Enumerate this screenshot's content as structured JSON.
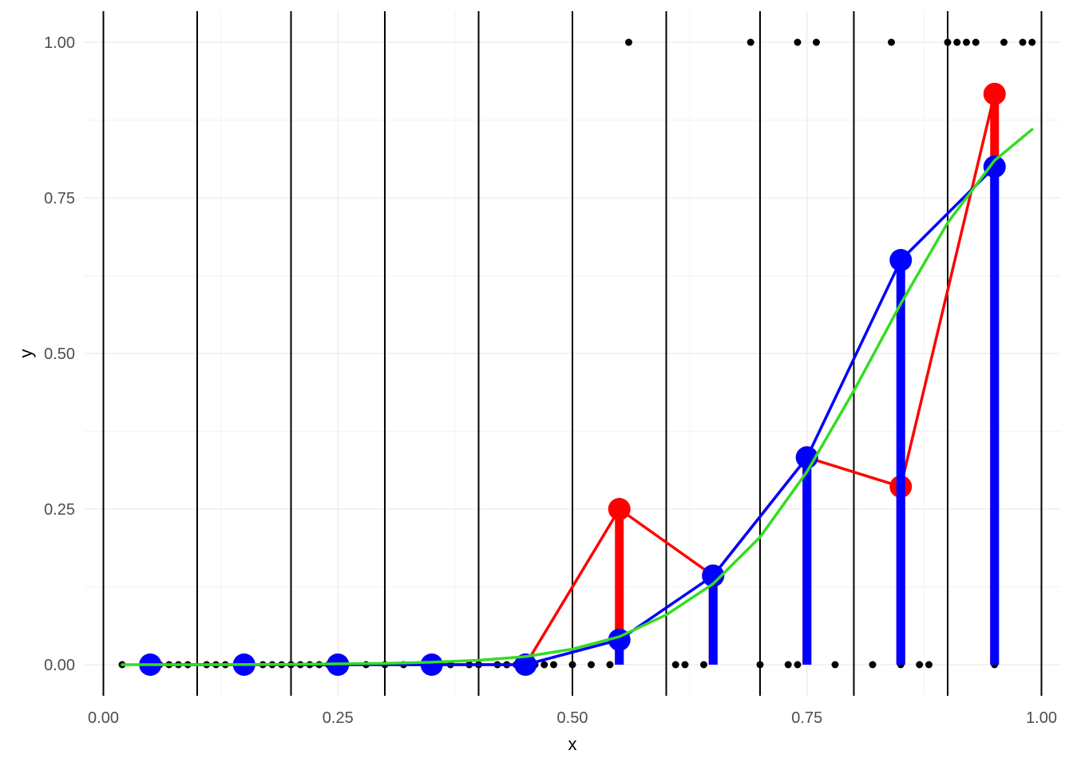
{
  "chart_data": {
    "type": "scatter",
    "title": "",
    "xlabel": "x",
    "ylabel": "y",
    "xlim": [
      -0.02,
      1.02
    ],
    "ylim": [
      -0.05,
      1.05
    ],
    "x_ticks": [
      {
        "value": 0.0,
        "label": "0.00"
      },
      {
        "value": 0.25,
        "label": "0.25"
      },
      {
        "value": 0.5,
        "label": "0.50"
      },
      {
        "value": 0.75,
        "label": "0.75"
      },
      {
        "value": 1.0,
        "label": "1.00"
      }
    ],
    "y_ticks": [
      {
        "value": 0.0,
        "label": "0.00"
      },
      {
        "value": 0.25,
        "label": "0.25"
      },
      {
        "value": 0.5,
        "label": "0.50"
      },
      {
        "value": 0.75,
        "label": "0.75"
      },
      {
        "value": 1.0,
        "label": "1.00"
      }
    ],
    "grid": true,
    "bin_edges": [
      0.0,
      0.1,
      0.2,
      0.3,
      0.4,
      0.5,
      0.6,
      0.7,
      0.8,
      0.9,
      1.0
    ],
    "series": [
      {
        "kind": "points",
        "color": "#000000",
        "x": [
          0.02,
          0.06,
          0.07,
          0.08,
          0.09,
          0.11,
          0.12,
          0.13,
          0.15,
          0.17,
          0.18,
          0.19,
          0.2,
          0.21,
          0.22,
          0.23,
          0.24,
          0.25,
          0.28,
          0.3,
          0.32,
          0.35,
          0.37,
          0.39,
          0.4,
          0.42,
          0.43,
          0.44,
          0.46,
          0.47,
          0.48,
          0.5,
          0.52,
          0.54,
          0.56,
          0.61,
          0.62,
          0.64,
          0.69,
          0.7,
          0.73,
          0.74,
          0.74,
          0.76,
          0.78,
          0.82,
          0.84,
          0.85,
          0.87,
          0.88,
          0.9,
          0.91,
          0.92,
          0.93,
          0.95,
          0.96,
          0.98,
          0.99
        ],
        "y": [
          0,
          0,
          0,
          0,
          0,
          0,
          0,
          0,
          0,
          0,
          0,
          0,
          0,
          0,
          0,
          0,
          0,
          0,
          0,
          0,
          0,
          0,
          0,
          0,
          0,
          0,
          0,
          0,
          0,
          0,
          0,
          0,
          0,
          0,
          1,
          0,
          0,
          0,
          1,
          0,
          0,
          0,
          1,
          1,
          0,
          0,
          1,
          0,
          0,
          0,
          1,
          1,
          1,
          1,
          0,
          1,
          1,
          1
        ]
      },
      {
        "kind": "line-points",
        "color": "#ff0000",
        "x": [
          0.05,
          0.15,
          0.25,
          0.35,
          0.45,
          0.55,
          0.65,
          0.75,
          0.85,
          0.95
        ],
        "y": [
          0,
          0,
          0,
          0,
          0,
          0.25,
          0.143,
          0.333,
          0.286,
          0.917
        ]
      },
      {
        "kind": "bars",
        "color": "#0000ff",
        "x": [
          0.55,
          0.65,
          0.75,
          0.85,
          0.95
        ],
        "y": [
          0.04,
          0.143,
          0.333,
          0.65,
          0.8
        ]
      },
      {
        "kind": "line-points",
        "color": "#0000ff",
        "x": [
          0.05,
          0.15,
          0.25,
          0.35,
          0.45,
          0.55,
          0.65,
          0.75,
          0.85,
          0.95
        ],
        "y": [
          0,
          0,
          0,
          0,
          0,
          0.04,
          0.143,
          0.333,
          0.65,
          0.8
        ]
      },
      {
        "kind": "curve",
        "color": "#33dd22",
        "x": [
          0.02,
          0.1,
          0.2,
          0.3,
          0.35,
          0.4,
          0.45,
          0.5,
          0.55,
          0.6,
          0.65,
          0.7,
          0.75,
          0.8,
          0.85,
          0.9,
          0.95,
          0.99
        ],
        "y": [
          0.0,
          0.0,
          0.0005,
          0.002,
          0.004,
          0.007,
          0.013,
          0.025,
          0.045,
          0.08,
          0.13,
          0.205,
          0.31,
          0.44,
          0.58,
          0.71,
          0.81,
          0.86
        ]
      }
    ]
  }
}
